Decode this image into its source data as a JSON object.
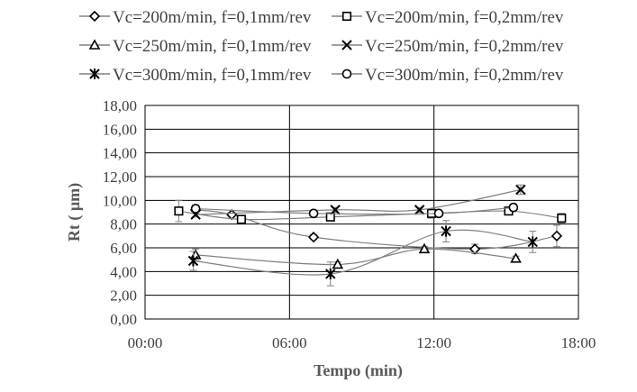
{
  "chart_data": {
    "type": "scatter",
    "title": "",
    "xlabel": "Tempo (min)",
    "ylabel": "Rt ( µm)",
    "xlim": [
      0,
      18
    ],
    "ylim": [
      0,
      18
    ],
    "x_ticks": [
      "00:00",
      "06:00",
      "12:00",
      "18:00"
    ],
    "y_ticks": [
      "0,00",
      "2,00",
      "4,00",
      "6,00",
      "8,00",
      "10,00",
      "12,00",
      "14,00",
      "16,00",
      "18,00"
    ],
    "grid": true,
    "legend_position": "top",
    "series": [
      {
        "name": "Vc=200m/min, f=0,1mm/rev",
        "marker": "diamond",
        "x": [
          2.1,
          3.6,
          7.0,
          13.7,
          17.1
        ],
        "y": [
          9.2,
          8.8,
          6.9,
          5.9,
          7.0
        ],
        "err": [
          0.3,
          0.2,
          0.2,
          0.4,
          0.9
        ]
      },
      {
        "name": "Vc=200m/min, f=0,2mm/rev",
        "marker": "square",
        "x": [
          1.4,
          4.0,
          7.7,
          11.9,
          15.1,
          17.3
        ],
        "y": [
          9.1,
          8.4,
          8.6,
          8.9,
          9.1,
          8.5
        ],
        "err": [
          0.9,
          0.2,
          0.3,
          0.4,
          0.2,
          0.4
        ]
      },
      {
        "name": "Vc=250m/min, f=0,1mm/rev",
        "marker": "triangle",
        "x": [
          2.1,
          8.0,
          11.6,
          15.4
        ],
        "y": [
          5.4,
          4.6,
          5.9,
          5.1
        ],
        "err": [
          0.5,
          0.2,
          0.2,
          0.2
        ]
      },
      {
        "name": "Vc=250m/min, f=0,2mm/rev",
        "marker": "x",
        "x": [
          2.1,
          7.9,
          11.4,
          15.6
        ],
        "y": [
          8.8,
          9.2,
          9.2,
          10.9
        ],
        "err": [
          0.2,
          0.2,
          0.2,
          0.4
        ]
      },
      {
        "name": "Vc=300m/min, f=0,1mm/rev",
        "marker": "star",
        "x": [
          2.0,
          7.7,
          12.5,
          16.1
        ],
        "y": [
          4.9,
          3.8,
          7.4,
          6.5
        ],
        "err": [
          0.8,
          1.0,
          0.9,
          0.9
        ]
      },
      {
        "name": "Vc=300m/min, f=0,2mm/rev",
        "marker": "circle",
        "x": [
          2.1,
          7.0,
          12.2,
          15.3
        ],
        "y": [
          9.3,
          8.9,
          8.9,
          9.4
        ],
        "err": [
          0.3,
          0.2,
          0.2,
          0.3
        ]
      }
    ]
  },
  "colors": {
    "marker": "#000000",
    "line": "#808080",
    "grid": "#000000",
    "text": "#404040"
  }
}
